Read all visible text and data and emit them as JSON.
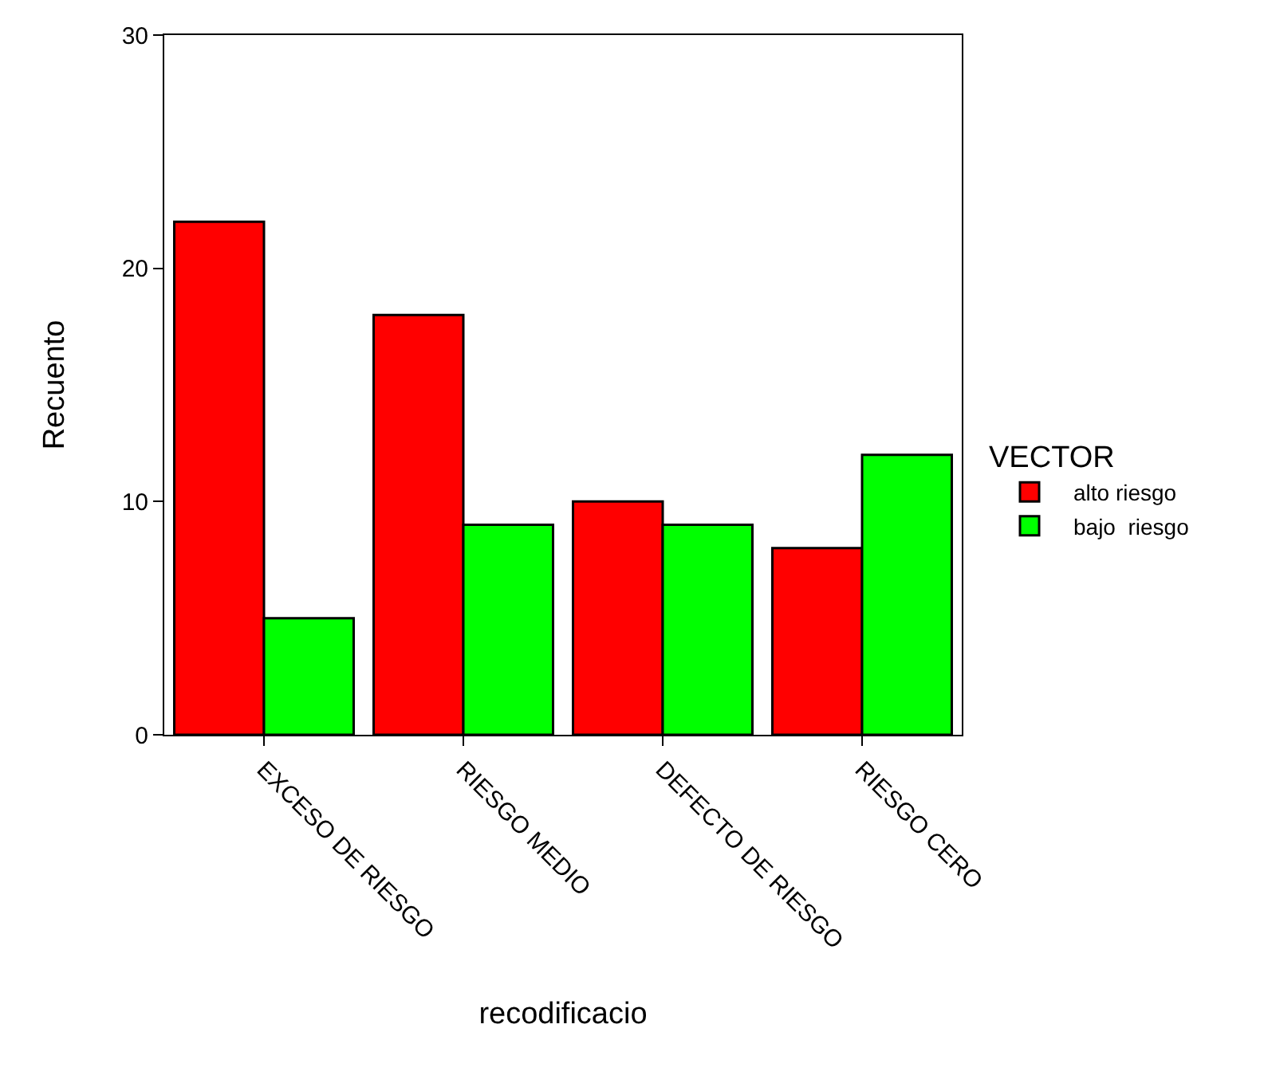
{
  "chart_data": {
    "type": "bar",
    "xlabel": "recodificacio",
    "ylabel": "Recuento",
    "legend_title": "VECTOR",
    "categories": [
      "EXCESO DE RIESGO",
      "RIESGO MEDIO",
      "DEFECTO DE RIESGO",
      "RIESGO CERO"
    ],
    "series": [
      {
        "name": "alto riesgo",
        "color": "#ff0000",
        "values": [
          22,
          18,
          10,
          8
        ]
      },
      {
        "name": "bajo  riesgo",
        "color": "#00ff00",
        "values": [
          5,
          9,
          9,
          12
        ]
      }
    ],
    "ylim": [
      0,
      30
    ],
    "yticks": [
      0,
      10,
      20,
      30
    ],
    "grid": false,
    "legend": "right"
  }
}
